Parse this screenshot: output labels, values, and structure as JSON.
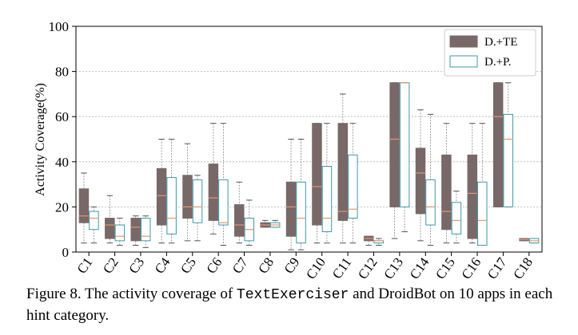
{
  "chart_data": {
    "type": "box",
    "ylabel": "Activity Coverage(%)",
    "ylim": [
      0,
      100
    ],
    "yticks": [
      0,
      20,
      40,
      60,
      80,
      100
    ],
    "grid": "horizontal dotted",
    "legend_position": "top-right",
    "categories": [
      "C1",
      "C2",
      "C3",
      "C4",
      "C5",
      "C6",
      "C7",
      "C8",
      "C9",
      "C10",
      "C11",
      "C12",
      "C13",
      "C14",
      "C15",
      "C16",
      "C17",
      "C18"
    ],
    "series": [
      {
        "name": "D.+TE",
        "color": "#786868",
        "median_color": "#e8956d",
        "boxes": [
          {
            "min": 4,
            "q1": 13,
            "median": 16,
            "q3": 28,
            "max": 35
          },
          {
            "min": 4,
            "q1": 6,
            "median": 12,
            "q3": 15,
            "max": 25
          },
          {
            "min": 3,
            "q1": 5,
            "median": 11,
            "q3": 15,
            "max": 16
          },
          {
            "min": 4,
            "q1": 12,
            "median": 25,
            "q3": 37,
            "max": 50
          },
          {
            "min": 5,
            "q1": 15,
            "median": 20,
            "q3": 34,
            "max": 48
          },
          {
            "min": 8,
            "q1": 14,
            "median": 24,
            "q3": 39,
            "max": 57
          },
          {
            "min": 4,
            "q1": 7,
            "median": 12,
            "q3": 21,
            "max": 31
          },
          {
            "min": 11,
            "q1": 11,
            "median": 12,
            "q3": 13,
            "max": 14
          },
          {
            "min": 1,
            "q1": 7,
            "median": 20,
            "q3": 31,
            "max": 50
          },
          {
            "min": 4,
            "q1": 12,
            "median": 29,
            "q3": 57,
            "max": 57
          },
          {
            "min": 4,
            "q1": 14,
            "median": 18,
            "q3": 57,
            "max": 70
          },
          {
            "min": 3,
            "q1": 5,
            "median": 6,
            "q3": 7,
            "max": 7
          },
          {
            "min": 6,
            "q1": 20,
            "median": 50,
            "q3": 75,
            "max": 75
          },
          {
            "min": 5,
            "q1": 17,
            "median": 35,
            "q3": 46,
            "max": 63
          },
          {
            "min": 4,
            "q1": 10,
            "median": 18,
            "q3": 43,
            "max": 57
          },
          {
            "min": 4,
            "q1": 6,
            "median": 26,
            "q3": 43,
            "max": 57
          },
          {
            "min": 20,
            "q1": 20,
            "median": 60,
            "q3": 75,
            "max": 75
          },
          {
            "min": 5,
            "q1": 5,
            "median": 5.5,
            "q3": 6,
            "max": 6
          }
        ]
      },
      {
        "name": "D.+P.",
        "color": "#ffffff",
        "edge_color": "#3a9aaa",
        "median_color": "#e8956d",
        "boxes": [
          {
            "min": 4,
            "q1": 10,
            "median": 15,
            "q3": 18,
            "max": 20
          },
          {
            "min": 3,
            "q1": 5,
            "median": 7,
            "q3": 12,
            "max": 15
          },
          {
            "min": 2,
            "q1": 5,
            "median": 7,
            "q3": 15,
            "max": 16
          },
          {
            "min": 4,
            "q1": 8,
            "median": 15,
            "q3": 33,
            "max": 50
          },
          {
            "min": 5,
            "q1": 13,
            "median": 20,
            "q3": 32,
            "max": 34
          },
          {
            "min": 3,
            "q1": 12,
            "median": 13,
            "q3": 32,
            "max": 57
          },
          {
            "min": 3,
            "q1": 5,
            "median": 10,
            "q3": 15,
            "max": 23
          },
          {
            "min": 11,
            "q1": 11,
            "median": 12,
            "q3": 13,
            "max": 14
          },
          {
            "min": 1,
            "q1": 4,
            "median": 15,
            "q3": 31,
            "max": 50
          },
          {
            "min": 4,
            "q1": 9,
            "median": 15,
            "q3": 38,
            "max": 57
          },
          {
            "min": 4,
            "q1": 15,
            "median": 19,
            "q3": 43,
            "max": 57
          },
          {
            "min": 3,
            "q1": 4,
            "median": 5,
            "q3": 5,
            "max": 6
          },
          {
            "min": 9,
            "q1": 20,
            "median": 75,
            "q3": 75,
            "max": 75
          },
          {
            "min": 3,
            "q1": 12,
            "median": 20,
            "q3": 32,
            "max": 61
          },
          {
            "min": 4,
            "q1": 8,
            "median": 14,
            "q3": 22,
            "max": 27
          },
          {
            "min": 3,
            "q1": 3,
            "median": 14,
            "q3": 31,
            "max": 57
          },
          {
            "min": 20,
            "q1": 20,
            "median": 50,
            "q3": 61,
            "max": 75
          },
          {
            "min": 4,
            "q1": 4,
            "median": 5,
            "q3": 6,
            "max": 6
          }
        ]
      }
    ]
  },
  "caption": {
    "prefix": "Figure 8.  The activity coverage of ",
    "tool": "TextExerciser",
    "suffix": " and DroidBot on 10 apps in each hint category."
  }
}
